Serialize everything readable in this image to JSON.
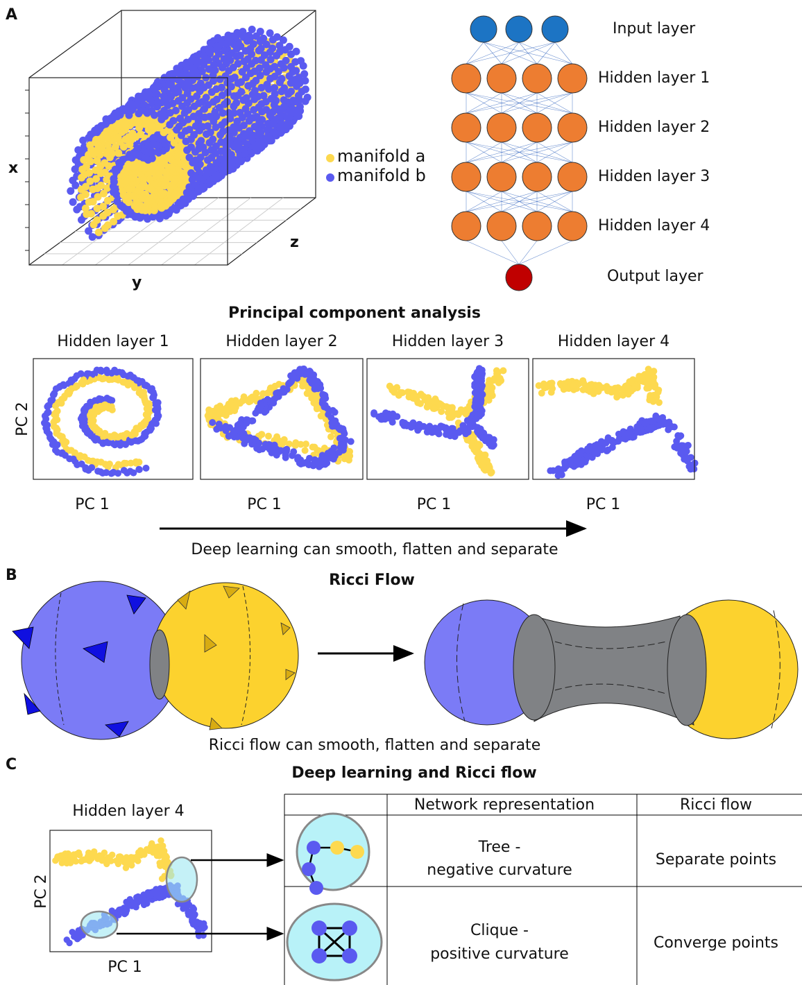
{
  "panel_labels": [
    "A",
    "B",
    "C"
  ],
  "manifold_plot": {
    "axis_labels": {
      "x": "x",
      "y": "y",
      "z": "z"
    },
    "legend": [
      "manifold a",
      "manifold b"
    ]
  },
  "network": {
    "layers": [
      "Input layer",
      "Hidden layer 1",
      "Hidden layer 2",
      "Hidden layer 3",
      "Hidden layer 4",
      "Output layer"
    ]
  },
  "pca": {
    "title": "Principal component analysis",
    "panels": [
      "Hidden layer 1",
      "Hidden layer 2",
      "Hidden layer 3",
      "Hidden layer 4"
    ],
    "x_label": "PC 1",
    "y_label": "PC 2",
    "caption": "Deep learning can smooth, flatten and separate"
  },
  "ricci": {
    "title": "Ricci Flow",
    "caption": "Ricci flow can smooth, flatten and separate"
  },
  "comparison": {
    "title": "Deep learning and Ricci flow",
    "plot_title": "Hidden layer 4",
    "x_label": "PC 1",
    "y_label": "PC 2",
    "table": {
      "header": [
        "Network representation",
        "Ricci flow"
      ],
      "rows": [
        [
          [
            "Tree -",
            "negative curvature"
          ],
          "Separate points"
        ],
        [
          [
            "Clique -",
            "positive curvature"
          ],
          "Converge points"
        ]
      ]
    }
  }
}
